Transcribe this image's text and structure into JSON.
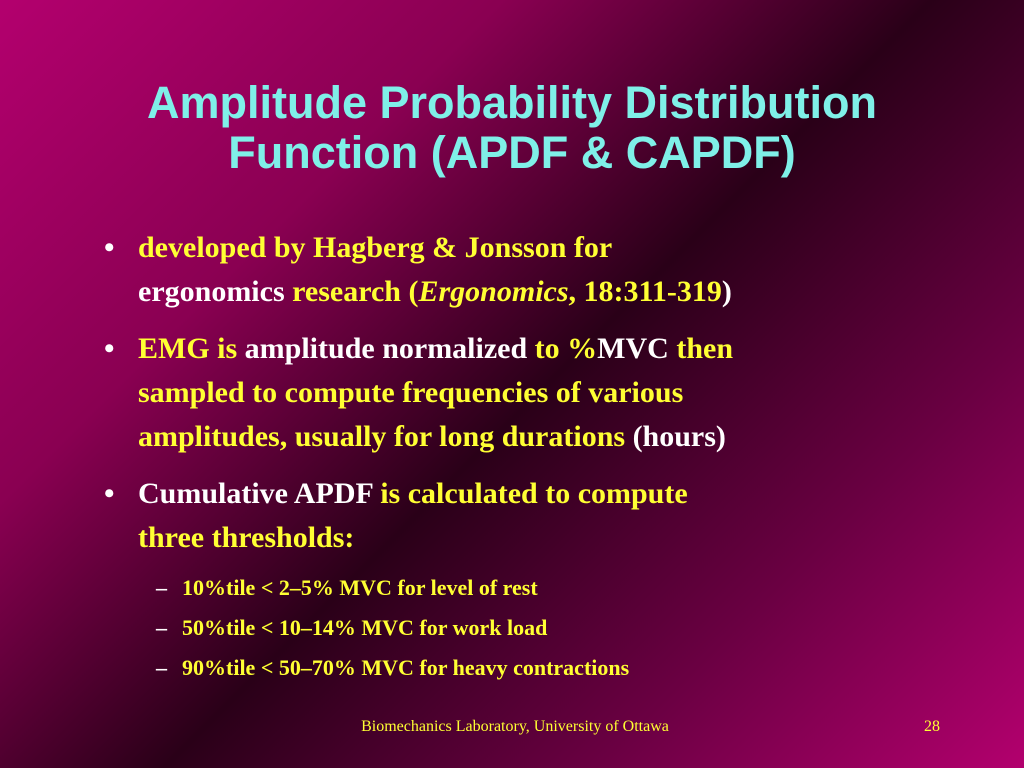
{
  "title": {
    "line1": "Amplitude Probability Distribution",
    "line2": "Function (APDF & CAPDF)"
  },
  "bullets": {
    "b1": {
      "marker": "•",
      "l1": "developed by Hagberg & Jonsson for",
      "l2a": "ergonomics ",
      "l2b": "research (",
      "l2c": "Ergonomics",
      "l2d": ", 18:311-319",
      "l2e": ")"
    },
    "b2": {
      "marker": "•",
      "l1a": "EMG is ",
      "l1b": "amplitude normalized ",
      "l1c": "to %",
      "l1d": "MVC ",
      "l1e": "then",
      "l2": "sampled to compute frequencies of various",
      "l3a": "amplitudes, usually for long durations ",
      "l3b": "(hours)"
    },
    "b3": {
      "marker": "•",
      "l1a": "Cumulative APDF ",
      "l1b": "is calculated to compute",
      "l2": "three thresholds:"
    }
  },
  "subbullets": [
    {
      "marker": "–",
      "text": "10%tile < 2–5% MVC for level of rest"
    },
    {
      "marker": "–",
      "text": "50%tile < 10–14% MVC for work load"
    },
    {
      "marker": "–",
      "text": "90%tile < 50–70% MVC for heavy contractions"
    }
  ],
  "footer": {
    "center": "Biomechanics Laboratory, University of Ottawa",
    "page": "28"
  },
  "colors": {
    "title": "#7ff0e8",
    "text_yellow": "#ffff33",
    "text_white": "#ffffff",
    "background": "#b3006e"
  }
}
